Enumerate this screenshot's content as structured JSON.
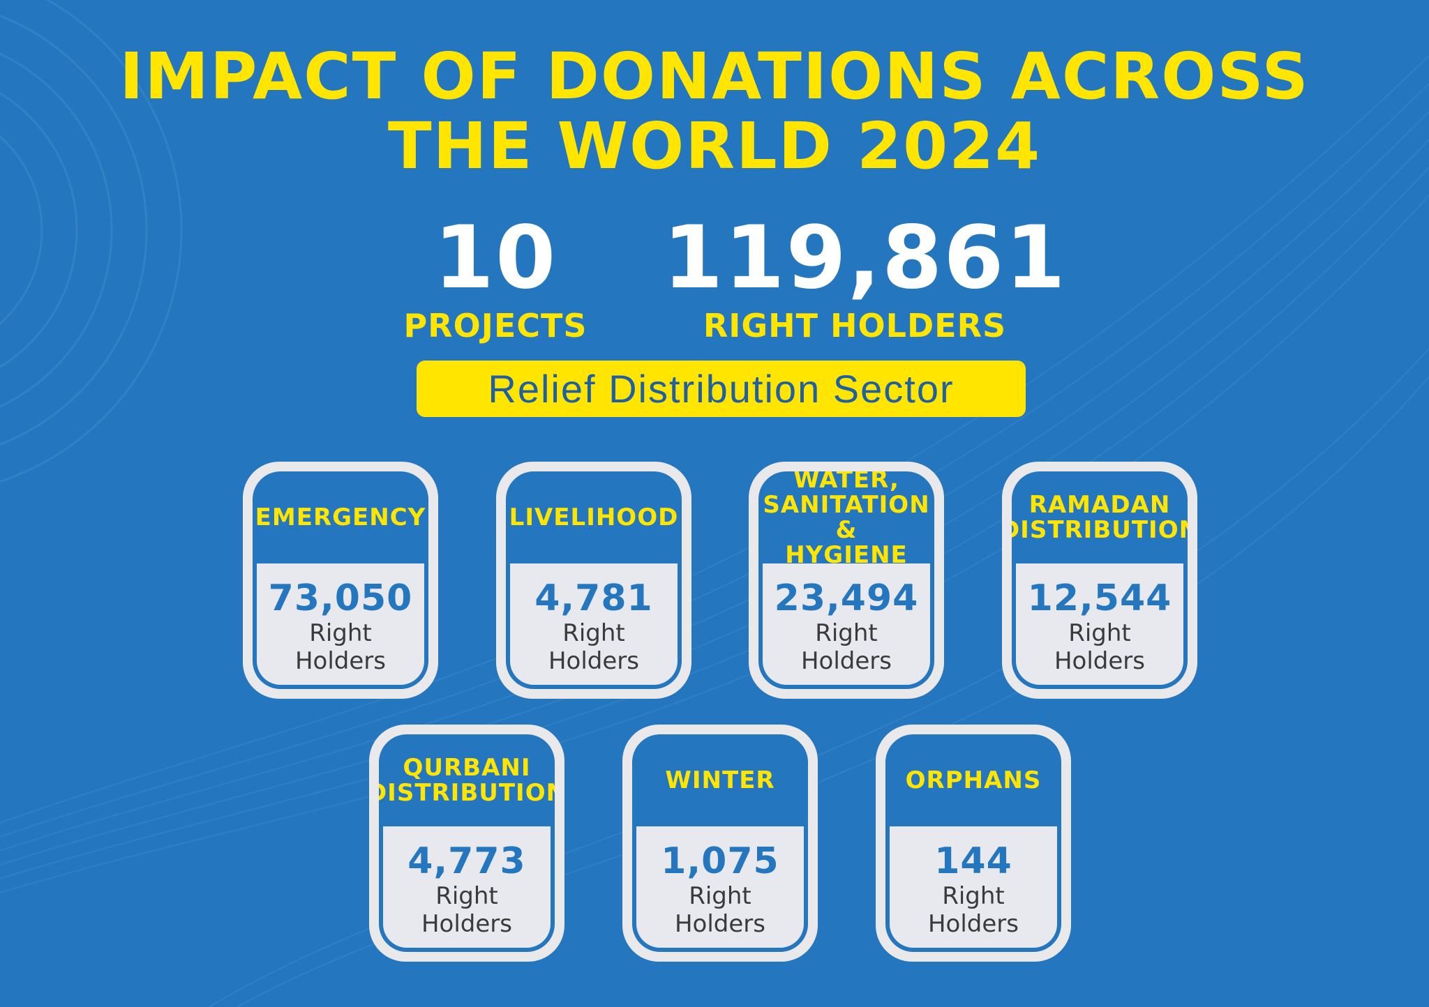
{
  "title": {
    "line1": "IMPACT OF DONATIONS ACROSS",
    "line2": "THE WORLD 2024"
  },
  "stats": {
    "projects": {
      "value": "10",
      "label": "PROJECTS"
    },
    "right_holders": {
      "value": "119,861",
      "label": "RIGHT HOLDERS"
    }
  },
  "sector": {
    "label": "Relief Distribution Sector"
  },
  "cards": [
    {
      "title": "EMERGENCY",
      "value": "73,050",
      "unit_line1": "Right",
      "unit_line2": "Holders"
    },
    {
      "title": "LIVELIHOOD",
      "value": "4,781",
      "unit_line1": "Right",
      "unit_line2": "Holders"
    },
    {
      "title": "WATER,\nSANITATION &\nHYGIENE",
      "value": "23,494",
      "unit_line1": "Right",
      "unit_line2": "Holders"
    },
    {
      "title": "RAMADAN\nDISTRIBUTION",
      "value": "12,544",
      "unit_line1": "Right",
      "unit_line2": "Holders"
    },
    {
      "title": "QURBANI\nDISTRIBUTION",
      "value": "4,773",
      "unit_line1": "Right",
      "unit_line2": "Holders"
    },
    {
      "title": "WINTER",
      "value": "1,075",
      "unit_line1": "Right",
      "unit_line2": "Holders"
    },
    {
      "title": "ORPHANS",
      "value": "144",
      "unit_line1": "Right",
      "unit_line2": "Holders"
    }
  ],
  "colors": {
    "background": "#2476bf",
    "accent": "#ffe500",
    "card": "#e9e9ec",
    "number": "#2476bf"
  }
}
